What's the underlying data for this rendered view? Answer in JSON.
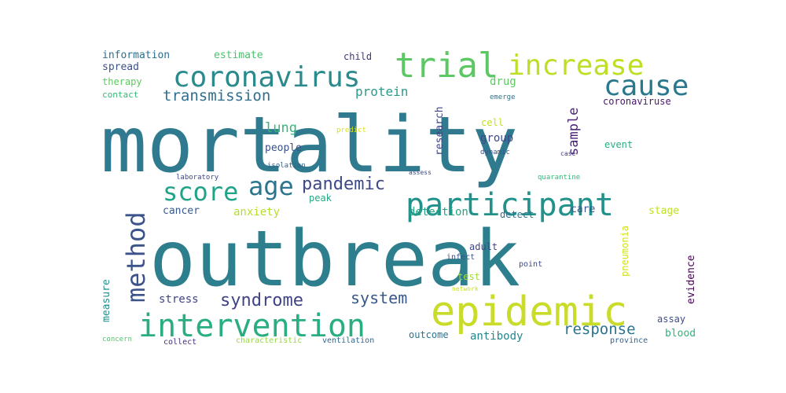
{
  "chart_data": {
    "type": "wordcloud",
    "words": [
      {
        "text": "mortality",
        "weight": 100,
        "color": "#2f7a8e"
      },
      {
        "text": "outbreak",
        "weight": 96,
        "color": "#2e7f8e"
      },
      {
        "text": "epidemic",
        "weight": 40,
        "color": "#c9dc2a"
      },
      {
        "text": "intervention",
        "weight": 35,
        "color": "#28ae80"
      },
      {
        "text": "participant",
        "weight": 34,
        "color": "#21918c"
      },
      {
        "text": "coronavirus",
        "weight": 30,
        "color": "#2a8a8c"
      },
      {
        "text": "trial",
        "weight": 30,
        "color": "#5cc863"
      },
      {
        "text": "increase",
        "weight": 30,
        "color": "#bddf26"
      },
      {
        "text": "cause",
        "weight": 29,
        "color": "#2a788e"
      },
      {
        "text": "score",
        "weight": 28,
        "color": "#20a386"
      },
      {
        "text": "method",
        "weight": 28,
        "color": "#3b528b"
      },
      {
        "text": "age",
        "weight": 26,
        "color": "#2b768e"
      },
      {
        "text": "pandemic",
        "weight": 19,
        "color": "#3e4989"
      },
      {
        "text": "syndrome",
        "weight": 18,
        "color": "#404387"
      },
      {
        "text": "transmission",
        "weight": 17,
        "color": "#2e6e8e"
      },
      {
        "text": "sample",
        "weight": 17,
        "color": "#482475"
      },
      {
        "text": "system",
        "weight": 16,
        "color": "#38588c"
      },
      {
        "text": "response",
        "weight": 15,
        "color": "#2c728e"
      },
      {
        "text": "lung",
        "weight": 14,
        "color": "#35b779"
      },
      {
        "text": "protein",
        "weight": 13,
        "color": "#2a9a8a"
      },
      {
        "text": "research",
        "weight": 12,
        "color": "#414487"
      },
      {
        "text": "anxiety",
        "weight": 12,
        "color": "#b5de2b"
      },
      {
        "text": "detection",
        "weight": 12,
        "color": "#22a785"
      },
      {
        "text": "antibody",
        "weight": 12,
        "color": "#25858e"
      },
      {
        "text": "evidence",
        "weight": 11,
        "color": "#440154"
      },
      {
        "text": "stress",
        "weight": 11,
        "color": "#414487"
      },
      {
        "text": "people",
        "weight": 11,
        "color": "#3b518b"
      },
      {
        "text": "group",
        "weight": 11,
        "color": "#3e4a89"
      },
      {
        "text": "drug",
        "weight": 11,
        "color": "#5ec962"
      },
      {
        "text": "outcome",
        "weight": 11,
        "color": "#2c738e"
      },
      {
        "text": "information",
        "weight": 10,
        "color": "#2d708e"
      },
      {
        "text": "estimate",
        "weight": 10,
        "color": "#4ac16d"
      },
      {
        "text": "cancer",
        "weight": 10,
        "color": "#38598c"
      },
      {
        "text": "care",
        "weight": 10,
        "color": "#3b528b"
      },
      {
        "text": "stage",
        "weight": 10,
        "color": "#bddf26"
      },
      {
        "text": "coronaviruse",
        "weight": 9,
        "color": "#48186a"
      },
      {
        "text": "measure",
        "weight": 9,
        "color": "#21908d"
      },
      {
        "text": "assay",
        "weight": 9,
        "color": "#3e4c8a"
      },
      {
        "text": "blood",
        "weight": 9,
        "color": "#2fb47c"
      },
      {
        "text": "event",
        "weight": 9,
        "color": "#27ad81"
      },
      {
        "text": "spread",
        "weight": 9,
        "color": "#3b528b"
      },
      {
        "text": "child",
        "weight": 9,
        "color": "#46337e"
      },
      {
        "text": "therapy",
        "weight": 9,
        "color": "#5ec962"
      },
      {
        "text": "test",
        "weight": 9,
        "color": "#a5db36"
      },
      {
        "text": "adult",
        "weight": 9,
        "color": "#414487"
      },
      {
        "text": "peak",
        "weight": 9,
        "color": "#22a884"
      },
      {
        "text": "detect",
        "weight": 9,
        "color": "#2d708e"
      },
      {
        "text": "pneumonia",
        "weight": 8,
        "color": "#d2e21b"
      },
      {
        "text": "cell",
        "weight": 8,
        "color": "#c2df23"
      },
      {
        "text": "contact",
        "weight": 8,
        "color": "#38b977"
      },
      {
        "text": "infect",
        "weight": 7,
        "color": "#3b528b"
      },
      {
        "text": "point",
        "weight": 7,
        "color": "#3e4a89"
      },
      {
        "text": "province",
        "weight": 7,
        "color": "#33628d"
      },
      {
        "text": "collect",
        "weight": 7,
        "color": "#472d7b"
      },
      {
        "text": "ventilation",
        "weight": 7,
        "color": "#31668e"
      },
      {
        "text": "characteristic",
        "weight": 7,
        "color": "#95d840"
      },
      {
        "text": "concern",
        "weight": 6,
        "color": "#50c46a"
      },
      {
        "text": "quarantine",
        "weight": 6,
        "color": "#35b779"
      },
      {
        "text": "laboratory",
        "weight": 6,
        "color": "#3f4788"
      },
      {
        "text": "isolation",
        "weight": 6,
        "color": "#35608d"
      },
      {
        "text": "dynamic",
        "weight": 6,
        "color": "#3b528b"
      },
      {
        "text": "emerge",
        "weight": 6,
        "color": "#2c738e"
      },
      {
        "text": "predict",
        "weight": 6,
        "color": "#d8e219"
      },
      {
        "text": "network",
        "weight": 6,
        "color": "#c8e020"
      },
      {
        "text": "assess",
        "weight": 5,
        "color": "#3e4a89"
      },
      {
        "text": "case",
        "weight": 5,
        "color": "#46337e"
      }
    ]
  }
}
